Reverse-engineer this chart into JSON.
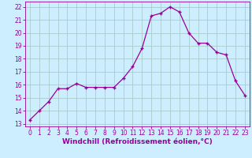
{
  "x": [
    0,
    1,
    2,
    3,
    4,
    5,
    6,
    7,
    8,
    9,
    10,
    11,
    12,
    13,
    14,
    15,
    16,
    17,
    18,
    19,
    20,
    21,
    22,
    23
  ],
  "y": [
    13.3,
    14.0,
    14.7,
    15.7,
    15.7,
    16.1,
    15.8,
    15.8,
    15.8,
    15.8,
    16.5,
    17.4,
    18.8,
    21.3,
    21.5,
    22.0,
    21.6,
    20.0,
    19.2,
    19.2,
    18.5,
    18.3,
    16.3,
    15.2
  ],
  "line_color": "#990099",
  "marker": "+",
  "marker_size": 3.5,
  "bg_color": "#cceeff",
  "grid_color": "#aacccc",
  "xlabel": "Windchill (Refroidissement éolien,°C)",
  "xlabel_color": "#990099",
  "ylim": [
    12.8,
    22.4
  ],
  "xlim": [
    -0.5,
    23.5
  ],
  "yticks": [
    13,
    14,
    15,
    16,
    17,
    18,
    19,
    20,
    21,
    22
  ],
  "xticks": [
    0,
    1,
    2,
    3,
    4,
    5,
    6,
    7,
    8,
    9,
    10,
    11,
    12,
    13,
    14,
    15,
    16,
    17,
    18,
    19,
    20,
    21,
    22,
    23
  ],
  "tick_color": "#990099",
  "tick_labelsize": 5.5,
  "xlabel_fontsize": 6.5,
  "linewidth": 0.9,
  "marker_linewidth": 1.0
}
